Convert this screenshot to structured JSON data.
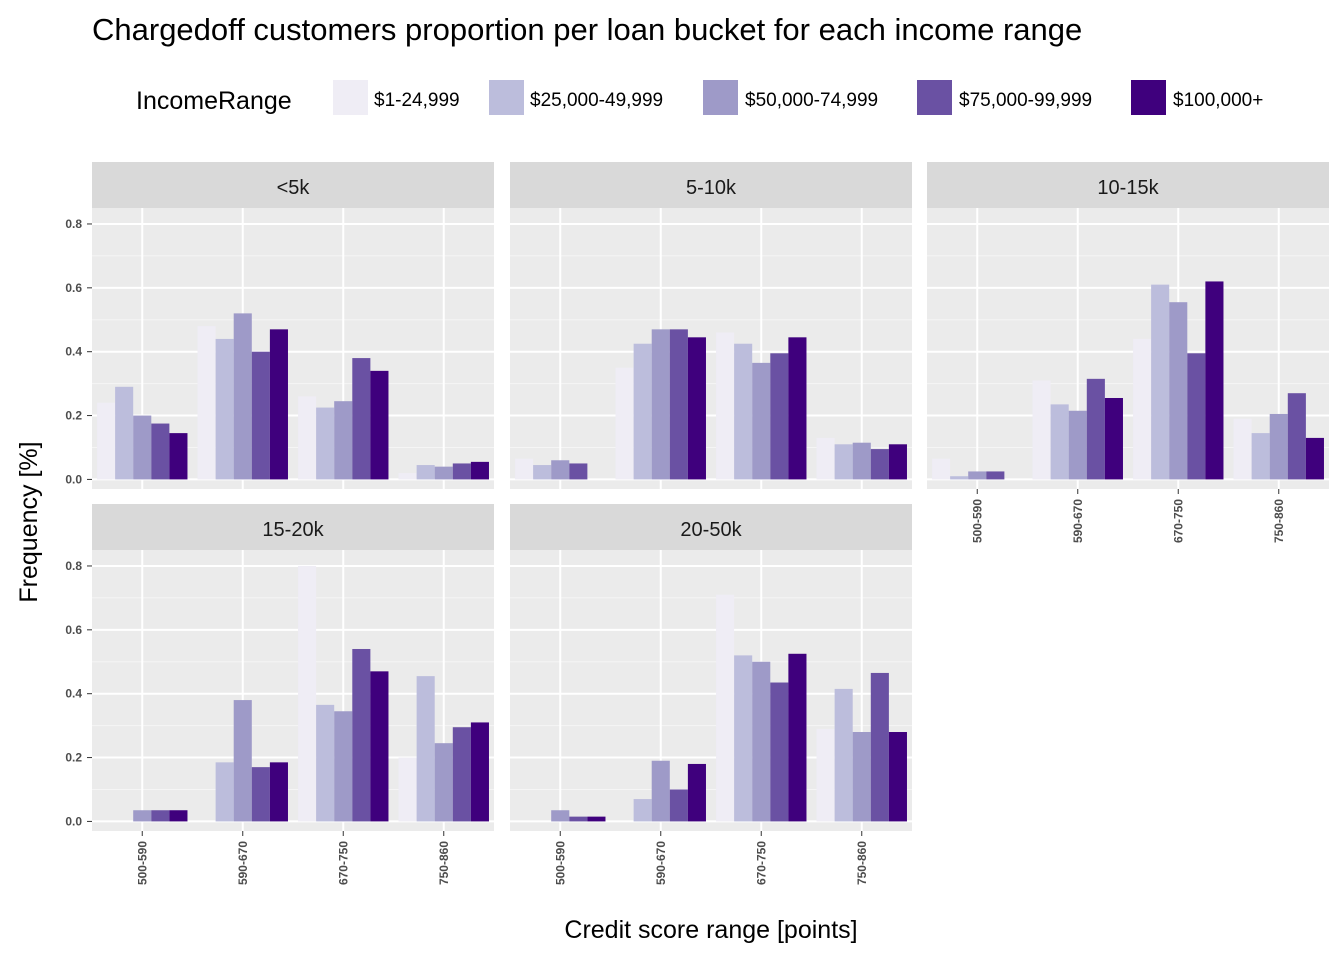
{
  "chart_data": {
    "type": "bar",
    "title": "Chargedoff customers proportion per loan bucket for each income range",
    "xlabel": "Credit score range [points]",
    "ylabel": "Frequency [%]",
    "ylim": [
      -0.03,
      0.85
    ],
    "yticks": [
      "0.0",
      "0.2",
      "0.4",
      "0.6",
      "0.8"
    ],
    "categories": [
      "500-590",
      "590-670",
      "670-750",
      "750-860"
    ],
    "grid": true,
    "legend": {
      "title": "IncomeRange",
      "position": "top",
      "entries": [
        "$1-24,999",
        "$25,000-49,999",
        "$50,000-74,999",
        "$75,000-99,999",
        "$100,000+"
      ],
      "colors": [
        "#efedf5",
        "#bcbddc",
        "#9e9ac8",
        "#6a51a3",
        "#3f007d"
      ]
    },
    "panels": [
      {
        "label": "<5k",
        "series": [
          {
            "name": "$1-24,999",
            "values": [
              0.24,
              0.48,
              0.26,
              0.02
            ]
          },
          {
            "name": "$25,000-49,999",
            "values": [
              0.29,
              0.44,
              0.225,
              0.045
            ]
          },
          {
            "name": "$50,000-74,999",
            "values": [
              0.2,
              0.52,
              0.245,
              0.04
            ]
          },
          {
            "name": "$75,000-99,999",
            "values": [
              0.175,
              0.4,
              0.38,
              0.05
            ]
          },
          {
            "name": "$100,000+",
            "values": [
              0.145,
              0.47,
              0.34,
              0.055
            ]
          }
        ]
      },
      {
        "label": "5-10k",
        "series": [
          {
            "name": "$1-24,999",
            "values": [
              0.065,
              0.35,
              0.46,
              0.13
            ]
          },
          {
            "name": "$25,000-49,999",
            "values": [
              0.045,
              0.425,
              0.425,
              0.11
            ]
          },
          {
            "name": "$50,000-74,999",
            "values": [
              0.06,
              0.47,
              0.365,
              0.115
            ]
          },
          {
            "name": "$75,000-99,999",
            "values": [
              0.05,
              0.47,
              0.395,
              0.095
            ]
          },
          {
            "name": "$100,000+",
            "values": [
              0.0,
              0.445,
              0.445,
              0.11
            ]
          }
        ]
      },
      {
        "label": "10-15k",
        "series": [
          {
            "name": "$1-24,999",
            "values": [
              0.065,
              0.31,
              0.44,
              0.19
            ]
          },
          {
            "name": "$25,000-49,999",
            "values": [
              0.01,
              0.235,
              0.61,
              0.145
            ]
          },
          {
            "name": "$50,000-74,999",
            "values": [
              0.025,
              0.215,
              0.555,
              0.205
            ]
          },
          {
            "name": "$75,000-99,999",
            "values": [
              0.025,
              0.315,
              0.395,
              0.27
            ]
          },
          {
            "name": "$100,000+",
            "values": [
              0.0,
              0.255,
              0.62,
              0.13
            ]
          }
        ]
      },
      {
        "label": "15-20k",
        "series": [
          {
            "name": "$1-24,999",
            "values": [
              0.0,
              0.0,
              0.8,
              0.2
            ]
          },
          {
            "name": "$25,000-49,999",
            "values": [
              0.0,
              0.185,
              0.365,
              0.455
            ]
          },
          {
            "name": "$50,000-74,999",
            "values": [
              0.035,
              0.38,
              0.345,
              0.245
            ]
          },
          {
            "name": "$75,000-99,999",
            "values": [
              0.035,
              0.17,
              0.54,
              0.295
            ]
          },
          {
            "name": "$100,000+",
            "values": [
              0.035,
              0.185,
              0.47,
              0.31
            ]
          }
        ]
      },
      {
        "label": "20-50k",
        "series": [
          {
            "name": "$1-24,999",
            "values": [
              0.0,
              0.0,
              0.71,
              0.29
            ]
          },
          {
            "name": "$25,000-49,999",
            "values": [
              0.0,
              0.07,
              0.52,
              0.415
            ]
          },
          {
            "name": "$50,000-74,999",
            "values": [
              0.035,
              0.19,
              0.5,
              0.28
            ]
          },
          {
            "name": "$75,000-99,999",
            "values": [
              0.015,
              0.1,
              0.435,
              0.465
            ]
          },
          {
            "name": "$100,000+",
            "values": [
              0.015,
              0.18,
              0.525,
              0.28
            ]
          }
        ]
      }
    ]
  }
}
